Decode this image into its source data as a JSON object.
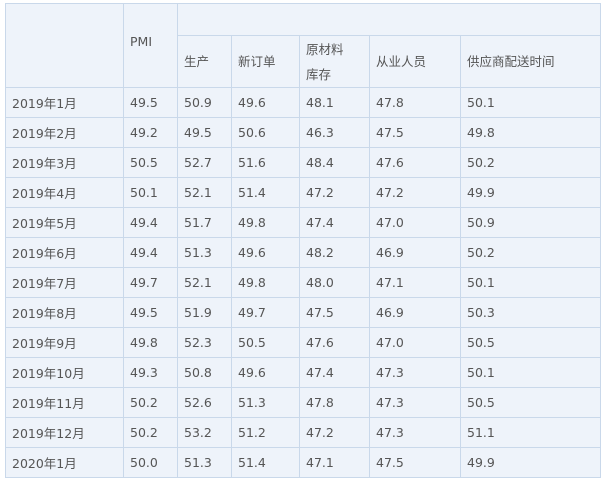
{
  "headers": {
    "period": "",
    "pmi": "PMI",
    "group": "",
    "sub": [
      "生产",
      "新订单",
      "原材料库存",
      "从业人员",
      "供应商配送时间"
    ],
    "sub3a": "原材料",
    "sub3b": "库存"
  },
  "rows": [
    [
      "2019年1月",
      "49.5",
      "50.9",
      "49.6",
      "48.1",
      "47.8",
      "50.1"
    ],
    [
      "2019年2月",
      "49.2",
      "49.5",
      "50.6",
      "46.3",
      "47.5",
      "49.8"
    ],
    [
      "2019年3月",
      "50.5",
      "52.7",
      "51.6",
      "48.4",
      "47.6",
      "50.2"
    ],
    [
      "2019年4月",
      "50.1",
      "52.1",
      "51.4",
      "47.2",
      "47.2",
      "49.9"
    ],
    [
      "2019年5月",
      "49.4",
      "51.7",
      "49.8",
      "47.4",
      "47.0",
      "50.9"
    ],
    [
      "2019年6月",
      "49.4",
      "51.3",
      "49.6",
      "48.2",
      "46.9",
      "50.2"
    ],
    [
      "2019年7月",
      "49.7",
      "52.1",
      "49.8",
      "48.0",
      "47.1",
      "50.1"
    ],
    [
      "2019年8月",
      "49.5",
      "51.9",
      "49.7",
      "47.5",
      "46.9",
      "50.3"
    ],
    [
      "2019年9月",
      "49.8",
      "52.3",
      "50.5",
      "47.6",
      "47.0",
      "50.5"
    ],
    [
      "2019年10月",
      "49.3",
      "50.8",
      "49.6",
      "47.4",
      "47.3",
      "50.1"
    ],
    [
      "2019年11月",
      "50.2",
      "52.6",
      "51.3",
      "47.8",
      "47.3",
      "50.5"
    ],
    [
      "2019年12月",
      "50.2",
      "53.2",
      "51.2",
      "47.2",
      "47.3",
      "51.1"
    ],
    [
      "2020年1月",
      "50.0",
      "51.3",
      "51.4",
      "47.1",
      "47.5",
      "49.9"
    ]
  ]
}
